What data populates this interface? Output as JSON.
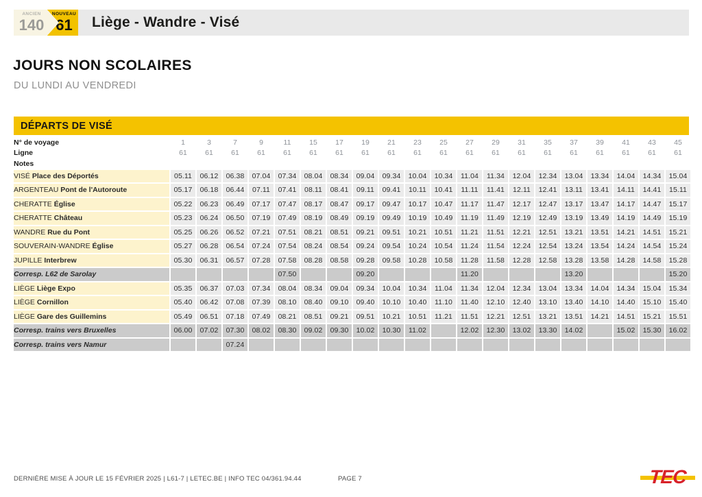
{
  "route_header": {
    "old_badge_label": "ANCIEN",
    "old_badge_number": "140",
    "new_badge_label": "NOUVEAU",
    "new_badge_number": "61",
    "title": "Liège - Wandre - Visé"
  },
  "section": {
    "heading": "JOURS NON SCOLAIRES",
    "subheading": "DU LUNDI AU VENDREDI"
  },
  "timetable": {
    "banner": "DÉPARTS DE VISÉ",
    "trip_row_label": "N° de voyage",
    "line_row_label": "Ligne",
    "notes_row_label": "Notes",
    "trip_numbers": [
      "1",
      "3",
      "7",
      "9",
      "11",
      "15",
      "17",
      "19",
      "21",
      "23",
      "25",
      "27",
      "29",
      "31",
      "35",
      "37",
      "39",
      "41",
      "43",
      "45"
    ],
    "line_numbers": [
      "61",
      "61",
      "61",
      "61",
      "61",
      "61",
      "61",
      "61",
      "61",
      "61",
      "61",
      "61",
      "61",
      "61",
      "61",
      "61",
      "61",
      "61",
      "61",
      "61"
    ],
    "rows": [
      {
        "type": "stop",
        "city": "VISÉ",
        "stop": "Place des Déportés",
        "times": [
          "05.11",
          "06.12",
          "06.38",
          "07.04",
          "07.34",
          "08.04",
          "08.34",
          "09.04",
          "09.34",
          "10.04",
          "10.34",
          "11.04",
          "11.34",
          "12.04",
          "12.34",
          "13.04",
          "13.34",
          "14.04",
          "14.34",
          "15.04"
        ]
      },
      {
        "type": "stop",
        "city": "ARGENTEAU",
        "stop": "Pont de l'Autoroute",
        "times": [
          "05.17",
          "06.18",
          "06.44",
          "07.11",
          "07.41",
          "08.11",
          "08.41",
          "09.11",
          "09.41",
          "10.11",
          "10.41",
          "11.11",
          "11.41",
          "12.11",
          "12.41",
          "13.11",
          "13.41",
          "14.11",
          "14.41",
          "15.11"
        ]
      },
      {
        "type": "stop",
        "city": "CHERATTE",
        "stop": "Église",
        "times": [
          "05.22",
          "06.23",
          "06.49",
          "07.17",
          "07.47",
          "08.17",
          "08.47",
          "09.17",
          "09.47",
          "10.17",
          "10.47",
          "11.17",
          "11.47",
          "12.17",
          "12.47",
          "13.17",
          "13.47",
          "14.17",
          "14.47",
          "15.17"
        ]
      },
      {
        "type": "stop",
        "city": "CHERATTE",
        "stop": "Château",
        "times": [
          "05.23",
          "06.24",
          "06.50",
          "07.19",
          "07.49",
          "08.19",
          "08.49",
          "09.19",
          "09.49",
          "10.19",
          "10.49",
          "11.19",
          "11.49",
          "12.19",
          "12.49",
          "13.19",
          "13.49",
          "14.19",
          "14.49",
          "15.19"
        ]
      },
      {
        "type": "stop",
        "city": "WANDRE",
        "stop": "Rue du Pont",
        "times": [
          "05.25",
          "06.26",
          "06.52",
          "07.21",
          "07.51",
          "08.21",
          "08.51",
          "09.21",
          "09.51",
          "10.21",
          "10.51",
          "11.21",
          "11.51",
          "12.21",
          "12.51",
          "13.21",
          "13.51",
          "14.21",
          "14.51",
          "15.21"
        ]
      },
      {
        "type": "stop",
        "city": "SOUVERAIN-WANDRE",
        "stop": "Église",
        "times": [
          "05.27",
          "06.28",
          "06.54",
          "07.24",
          "07.54",
          "08.24",
          "08.54",
          "09.24",
          "09.54",
          "10.24",
          "10.54",
          "11.24",
          "11.54",
          "12.24",
          "12.54",
          "13.24",
          "13.54",
          "14.24",
          "14.54",
          "15.24"
        ]
      },
      {
        "type": "stop",
        "city": "JUPILLE",
        "stop": "Interbrew",
        "times": [
          "05.30",
          "06.31",
          "06.57",
          "07.28",
          "07.58",
          "08.28",
          "08.58",
          "09.28",
          "09.58",
          "10.28",
          "10.58",
          "11.28",
          "11.58",
          "12.28",
          "12.58",
          "13.28",
          "13.58",
          "14.28",
          "14.58",
          "15.28"
        ]
      },
      {
        "type": "corresp",
        "label": "Corresp. L62 de Sarolay",
        "times": [
          "",
          "",
          "",
          "",
          "07.50",
          "",
          "",
          "09.20",
          "",
          "",
          "",
          "11.20",
          "",
          "",
          "",
          "13.20",
          "",
          "",
          "",
          "15.20"
        ]
      },
      {
        "type": "stop",
        "city": "LIÈGE",
        "stop": "Liège Expo",
        "times": [
          "05.35",
          "06.37",
          "07.03",
          "07.34",
          "08.04",
          "08.34",
          "09.04",
          "09.34",
          "10.04",
          "10.34",
          "11.04",
          "11.34",
          "12.04",
          "12.34",
          "13.04",
          "13.34",
          "14.04",
          "14.34",
          "15.04",
          "15.34"
        ]
      },
      {
        "type": "stop",
        "city": "LIÈGE",
        "stop": "Cornillon",
        "times": [
          "05.40",
          "06.42",
          "07.08",
          "07.39",
          "08.10",
          "08.40",
          "09.10",
          "09.40",
          "10.10",
          "10.40",
          "11.10",
          "11.40",
          "12.10",
          "12.40",
          "13.10",
          "13.40",
          "14.10",
          "14.40",
          "15.10",
          "15.40"
        ]
      },
      {
        "type": "stop",
        "city": "LIÈGE",
        "stop": "Gare des Guillemins",
        "times": [
          "05.49",
          "06.51",
          "07.18",
          "07.49",
          "08.21",
          "08.51",
          "09.21",
          "09.51",
          "10.21",
          "10.51",
          "11.21",
          "11.51",
          "12.21",
          "12.51",
          "13.21",
          "13.51",
          "14.21",
          "14.51",
          "15.21",
          "15.51"
        ]
      },
      {
        "type": "corresp",
        "label": "Corresp. trains vers Bruxelles",
        "times": [
          "06.00",
          "07.02",
          "07.30",
          "08.02",
          "08.30",
          "09.02",
          "09.30",
          "10.02",
          "10.30",
          "11.02",
          "",
          "12.02",
          "12.30",
          "13.02",
          "13.30",
          "14.02",
          "",
          "15.02",
          "15.30",
          "16.02"
        ]
      },
      {
        "type": "corresp",
        "label": "Corresp. trains vers Namur",
        "times": [
          "",
          "",
          "07.24",
          "",
          "",
          "",
          "",
          "",
          "",
          "",
          "",
          "",
          "",
          "",
          "",
          "",
          "",
          "",
          "",
          ""
        ]
      }
    ]
  },
  "footer": {
    "info": "DERNIÈRE MISE À JOUR LE 15 FÉVRIER 2025  |  L61-7  |  LETEC.BE  |  INFO TEC 04/361.94.44",
    "page": "PAGE 7",
    "logo_text": "TEC"
  },
  "colors": {
    "tec_yellow": "#f4c200",
    "header_gray": "#e9e9e9",
    "stop_label_yellow": "#fdf3cd",
    "time_cell_gray": "#ebebeb",
    "corresp_gray": "#cbcbcb",
    "logo_red": "#d8232a"
  }
}
